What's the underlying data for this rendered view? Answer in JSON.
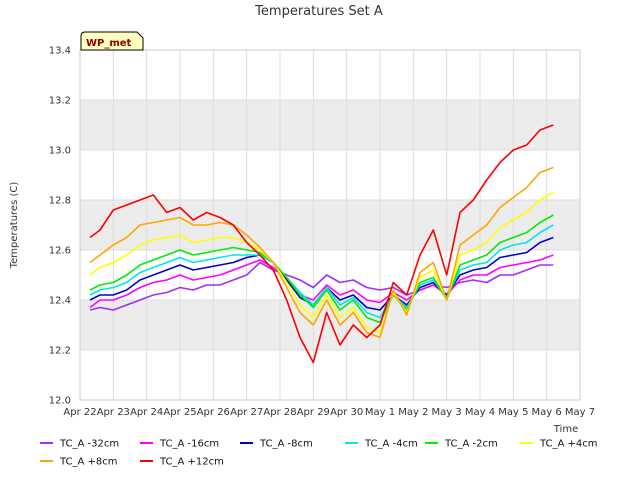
{
  "chart_data": {
    "type": "line",
    "title": "Temperatures Set A",
    "xlabel": "Time",
    "ylabel": "Temperatures (C)",
    "site_label": "WP_met",
    "ylim": [
      12.0,
      13.4
    ],
    "yticks": [
      "12.0",
      "12.2",
      "12.4",
      "12.6",
      "12.8",
      "13.0",
      "13.2",
      "13.4"
    ],
    "xlim": [
      0,
      15
    ],
    "xticks": [
      "Apr 22",
      "Apr 23",
      "Apr 24",
      "Apr 25",
      "Apr 26",
      "Apr 27",
      "Apr 28",
      "Apr 29",
      "Apr 30",
      "May 1",
      "May 2",
      "May 3",
      "May 4",
      "May 5",
      "May 6",
      "May 7"
    ],
    "grid": true,
    "legend_position": "bottom",
    "x": [
      0.3,
      0.6,
      1.0,
      1.4,
      1.8,
      2.2,
      2.6,
      3.0,
      3.4,
      3.8,
      4.2,
      4.6,
      5.0,
      5.4,
      5.8,
      6.2,
      6.6,
      7.0,
      7.4,
      7.8,
      8.2,
      8.6,
      9.0,
      9.4,
      9.8,
      10.2,
      10.6,
      11.0,
      11.4,
      11.8,
      12.2,
      12.6,
      13.0,
      13.4,
      13.8,
      14.2
    ],
    "series": [
      {
        "name": "TC_A -32cm",
        "color": "#9b30ff",
        "values": [
          12.36,
          12.37,
          12.36,
          12.38,
          12.4,
          12.42,
          12.43,
          12.45,
          12.44,
          12.46,
          12.46,
          12.48,
          12.5,
          12.55,
          12.52,
          12.5,
          12.48,
          12.45,
          12.5,
          12.47,
          12.48,
          12.45,
          12.44,
          12.45,
          12.42,
          12.44,
          12.46,
          12.45,
          12.47,
          12.48,
          12.47,
          12.5,
          12.5,
          12.52,
          12.54,
          12.54
        ]
      },
      {
        "name": "TC_A -16cm",
        "color": "#ff00ff",
        "values": [
          12.37,
          12.4,
          12.4,
          12.42,
          12.45,
          12.47,
          12.48,
          12.5,
          12.48,
          12.49,
          12.5,
          12.52,
          12.54,
          12.56,
          12.53,
          12.48,
          12.42,
          12.4,
          12.46,
          12.42,
          12.44,
          12.4,
          12.39,
          12.43,
          12.4,
          12.44,
          12.46,
          12.42,
          12.48,
          12.5,
          12.5,
          12.53,
          12.54,
          12.55,
          12.56,
          12.58
        ]
      },
      {
        "name": "TC_A -8cm",
        "color": "#0000cd",
        "values": [
          12.4,
          12.42,
          12.42,
          12.44,
          12.48,
          12.5,
          12.52,
          12.54,
          12.52,
          12.53,
          12.54,
          12.55,
          12.57,
          12.58,
          12.55,
          12.48,
          12.41,
          12.38,
          12.45,
          12.4,
          12.42,
          12.37,
          12.36,
          12.42,
          12.38,
          12.45,
          12.47,
          12.42,
          12.5,
          12.52,
          12.53,
          12.57,
          12.58,
          12.59,
          12.63,
          12.65
        ]
      },
      {
        "name": "TC_A -4cm",
        "color": "#00e5ee",
        "values": [
          12.42,
          12.44,
          12.45,
          12.47,
          12.51,
          12.53,
          12.55,
          12.57,
          12.55,
          12.56,
          12.57,
          12.58,
          12.58,
          12.58,
          12.55,
          12.49,
          12.43,
          12.38,
          12.45,
          12.38,
          12.41,
          12.35,
          12.33,
          12.42,
          12.37,
          12.46,
          12.48,
          12.41,
          12.52,
          12.54,
          12.55,
          12.6,
          12.62,
          12.63,
          12.67,
          12.7
        ]
      },
      {
        "name": "TC_A -2cm",
        "color": "#00ee00",
        "values": [
          12.44,
          12.46,
          12.47,
          12.5,
          12.54,
          12.56,
          12.58,
          12.6,
          12.58,
          12.59,
          12.6,
          12.61,
          12.6,
          12.59,
          12.55,
          12.49,
          12.42,
          12.37,
          12.44,
          12.36,
          12.4,
          12.33,
          12.31,
          12.42,
          12.36,
          12.47,
          12.49,
          12.4,
          12.54,
          12.56,
          12.58,
          12.63,
          12.65,
          12.67,
          12.71,
          12.74
        ]
      },
      {
        "name": "TC_A +4cm",
        "color": "#ffff00",
        "values": [
          12.5,
          12.53,
          12.55,
          12.58,
          12.62,
          12.64,
          12.65,
          12.66,
          12.63,
          12.64,
          12.65,
          12.65,
          12.63,
          12.6,
          12.55,
          12.47,
          12.38,
          12.33,
          12.42,
          12.33,
          12.37,
          12.29,
          12.27,
          12.43,
          12.35,
          12.49,
          12.52,
          12.4,
          12.58,
          12.6,
          12.63,
          12.69,
          12.72,
          12.75,
          12.8,
          12.83
        ]
      },
      {
        "name": "TC_A +8cm",
        "color": "#ffa500",
        "values": [
          12.55,
          12.58,
          12.62,
          12.65,
          12.7,
          12.71,
          12.72,
          12.73,
          12.7,
          12.7,
          12.71,
          12.7,
          12.66,
          12.61,
          12.55,
          12.45,
          12.35,
          12.3,
          12.4,
          12.3,
          12.35,
          12.27,
          12.25,
          12.44,
          12.34,
          12.51,
          12.55,
          12.4,
          12.62,
          12.66,
          12.7,
          12.77,
          12.81,
          12.85,
          12.91,
          12.93
        ]
      },
      {
        "name": "TC_A +12cm",
        "color": "#ff0000",
        "values": [
          12.65,
          12.68,
          12.76,
          12.78,
          12.8,
          12.82,
          12.75,
          12.77,
          12.72,
          12.75,
          12.73,
          12.7,
          12.63,
          12.58,
          12.52,
          12.4,
          12.25,
          12.15,
          12.35,
          12.22,
          12.3,
          12.25,
          12.3,
          12.47,
          12.42,
          12.58,
          12.68,
          12.5,
          12.75,
          12.8,
          12.88,
          12.95,
          13.0,
          13.02,
          13.08,
          13.1
        ]
      }
    ]
  }
}
